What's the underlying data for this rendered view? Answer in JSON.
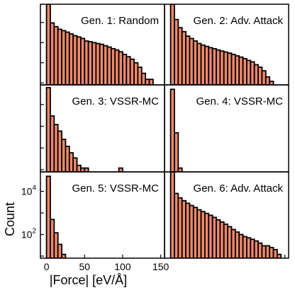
{
  "chart_data": [
    {
      "type": "bar",
      "title": "Gen. 1: Random",
      "yscale": "log",
      "xlim": [
        -8,
        155
      ],
      "ylim": [
        8,
        80000
      ],
      "bin_width": 5,
      "bin_starts": [
        0,
        5,
        10,
        15,
        20,
        25,
        30,
        35,
        40,
        45,
        50,
        55,
        60,
        65,
        70,
        75,
        80,
        85,
        90,
        95,
        100,
        105,
        110,
        115,
        120,
        125,
        130,
        135
      ],
      "values": [
        80000,
        9500,
        6200,
        4600,
        3900,
        3300,
        2700,
        2200,
        1900,
        1600,
        1200,
        1100,
        1000,
        900,
        820,
        700,
        600,
        500,
        430,
        350,
        260,
        200,
        150,
        100,
        60,
        30,
        15,
        15
      ]
    },
    {
      "type": "bar",
      "title": "Gen. 2: Adv. Attack",
      "yscale": "log",
      "xlim": [
        -8,
        155
      ],
      "ylim": [
        8,
        80000
      ],
      "bin_width": 5,
      "bin_starts": [
        0,
        5,
        10,
        15,
        20,
        25,
        30,
        35,
        40,
        45,
        50,
        55,
        60,
        65,
        70,
        75,
        80,
        85,
        90,
        95,
        100,
        105,
        110,
        115,
        120,
        125,
        130
      ],
      "values": [
        80000,
        14000,
        5500,
        3500,
        2100,
        1600,
        1200,
        900,
        750,
        650,
        560,
        500,
        430,
        380,
        340,
        300,
        260,
        220,
        190,
        160,
        130,
        110,
        80,
        60,
        40,
        20,
        12
      ]
    },
    {
      "type": "bar",
      "title": "Gen. 3: VSSR-MC",
      "yscale": "log",
      "xlim": [
        -8,
        155
      ],
      "ylim": [
        8,
        80000
      ],
      "bin_width": 5,
      "bin_starts": [
        0,
        5,
        10,
        15,
        20,
        25,
        30,
        35,
        40,
        45,
        50,
        55,
        60,
        65,
        70,
        75,
        80,
        85,
        90,
        95
      ],
      "values": [
        60000,
        3000,
        1200,
        600,
        250,
        120,
        60,
        35,
        16,
        12,
        12,
        0,
        0,
        0,
        0,
        0,
        0,
        0,
        0,
        12
      ]
    },
    {
      "type": "bar",
      "title": "Gen. 4: VSSR-MC",
      "yscale": "log",
      "xlim": [
        -8,
        155
      ],
      "ylim": [
        8,
        80000
      ],
      "bin_width": 5,
      "bin_starts": [
        0,
        5,
        10
      ],
      "values": [
        50000,
        500,
        12
      ]
    },
    {
      "type": "bar",
      "title": "Gen. 5: VSSR-MC",
      "yscale": "log",
      "xlim": [
        -8,
        155
      ],
      "ylim": [
        8,
        80000
      ],
      "ylabel": "Count",
      "yticks": [
        100,
        10000
      ],
      "ytick_labels": [
        {
          "base": "10",
          "exp": "2"
        },
        {
          "base": "10",
          "exp": "4"
        }
      ],
      "bin_width": 5,
      "bin_starts": [
        0,
        5,
        10,
        15,
        20
      ],
      "values": [
        50000,
        500,
        120,
        35,
        12
      ]
    },
    {
      "type": "bar",
      "title": "Gen. 6: Adv. Attack",
      "yscale": "log",
      "xlim": [
        -8,
        155
      ],
      "ylim": [
        8,
        80000
      ],
      "bin_width": 5,
      "bin_starts": [
        0,
        5,
        10,
        15,
        20,
        25,
        30,
        35,
        40,
        45,
        50,
        55,
        60,
        65,
        70,
        75,
        80,
        85,
        90,
        95,
        100,
        105,
        110,
        115,
        120,
        125,
        130,
        135,
        140
      ],
      "values": [
        80000,
        8000,
        5000,
        3700,
        2800,
        2200,
        1800,
        1400,
        1150,
        950,
        780,
        620,
        480,
        380,
        300,
        230,
        170,
        130,
        100,
        80,
        70,
        60,
        50,
        40,
        30,
        30,
        25,
        20,
        12
      ]
    }
  ],
  "x_axis": {
    "label": "|Force| [eV/Å]",
    "ticks": [
      0,
      50,
      100,
      150
    ],
    "tick_labels": [
      "0",
      "50",
      "100",
      "150"
    ]
  },
  "colors": {
    "bar_fill": "#f0896b",
    "bar_stroke": "#000000",
    "frame": "#000000"
  }
}
